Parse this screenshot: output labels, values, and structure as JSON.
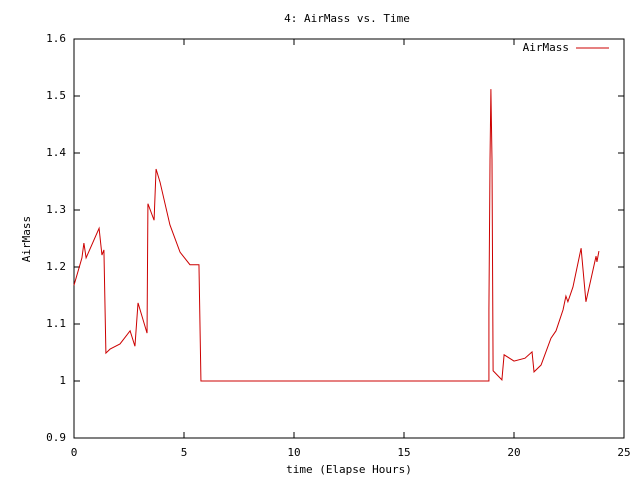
{
  "chart_data": {
    "type": "line",
    "title": "4: AirMass vs. Time",
    "x_label": "time (Elapse Hours)",
    "y_label": "AirMass",
    "legend": "top-right",
    "xlim": [
      0,
      25
    ],
    "xticks": [
      0,
      5,
      10,
      15,
      20,
      25
    ],
    "ylim": [
      0.9,
      1.6
    ],
    "yticks": [
      0.9,
      1,
      1.1,
      1.2,
      1.3,
      1.4,
      1.5,
      1.6
    ],
    "series": [
      {
        "name": "AirMass",
        "color": "#cc0000",
        "x": [
          0,
          0.36,
          0.45,
          0.55,
          1.14,
          1.27,
          1.36,
          1.45,
          1.64,
          2.09,
          2.55,
          2.77,
          2.91,
          3.32,
          3.36,
          3.64,
          3.73,
          3.91,
          4.36,
          4.82,
          5.27,
          5.68,
          5.77,
          18.86,
          18.86,
          18.91,
          18.95,
          19.0,
          19.05,
          19.45,
          19.55,
          20.0,
          20.5,
          20.82,
          20.91,
          21.23,
          21.68,
          21.91,
          22.23,
          22.36,
          22.45,
          22.68,
          23.05,
          23.27,
          23.73,
          23.77,
          23.86
        ],
        "values": [
          1.168,
          1.216,
          1.242,
          1.216,
          1.268,
          1.221,
          1.23,
          1.049,
          1.056,
          1.065,
          1.088,
          1.061,
          1.137,
          1.084,
          1.311,
          1.282,
          1.372,
          1.349,
          1.274,
          1.226,
          1.204,
          1.204,
          1.0,
          1.0,
          1.125,
          1.388,
          1.512,
          1.388,
          1.018,
          1.002,
          1.046,
          1.035,
          1.04,
          1.051,
          1.016,
          1.028,
          1.075,
          1.088,
          1.125,
          1.149,
          1.139,
          1.165,
          1.233,
          1.139,
          1.219,
          1.209,
          1.228
        ]
      }
    ]
  }
}
